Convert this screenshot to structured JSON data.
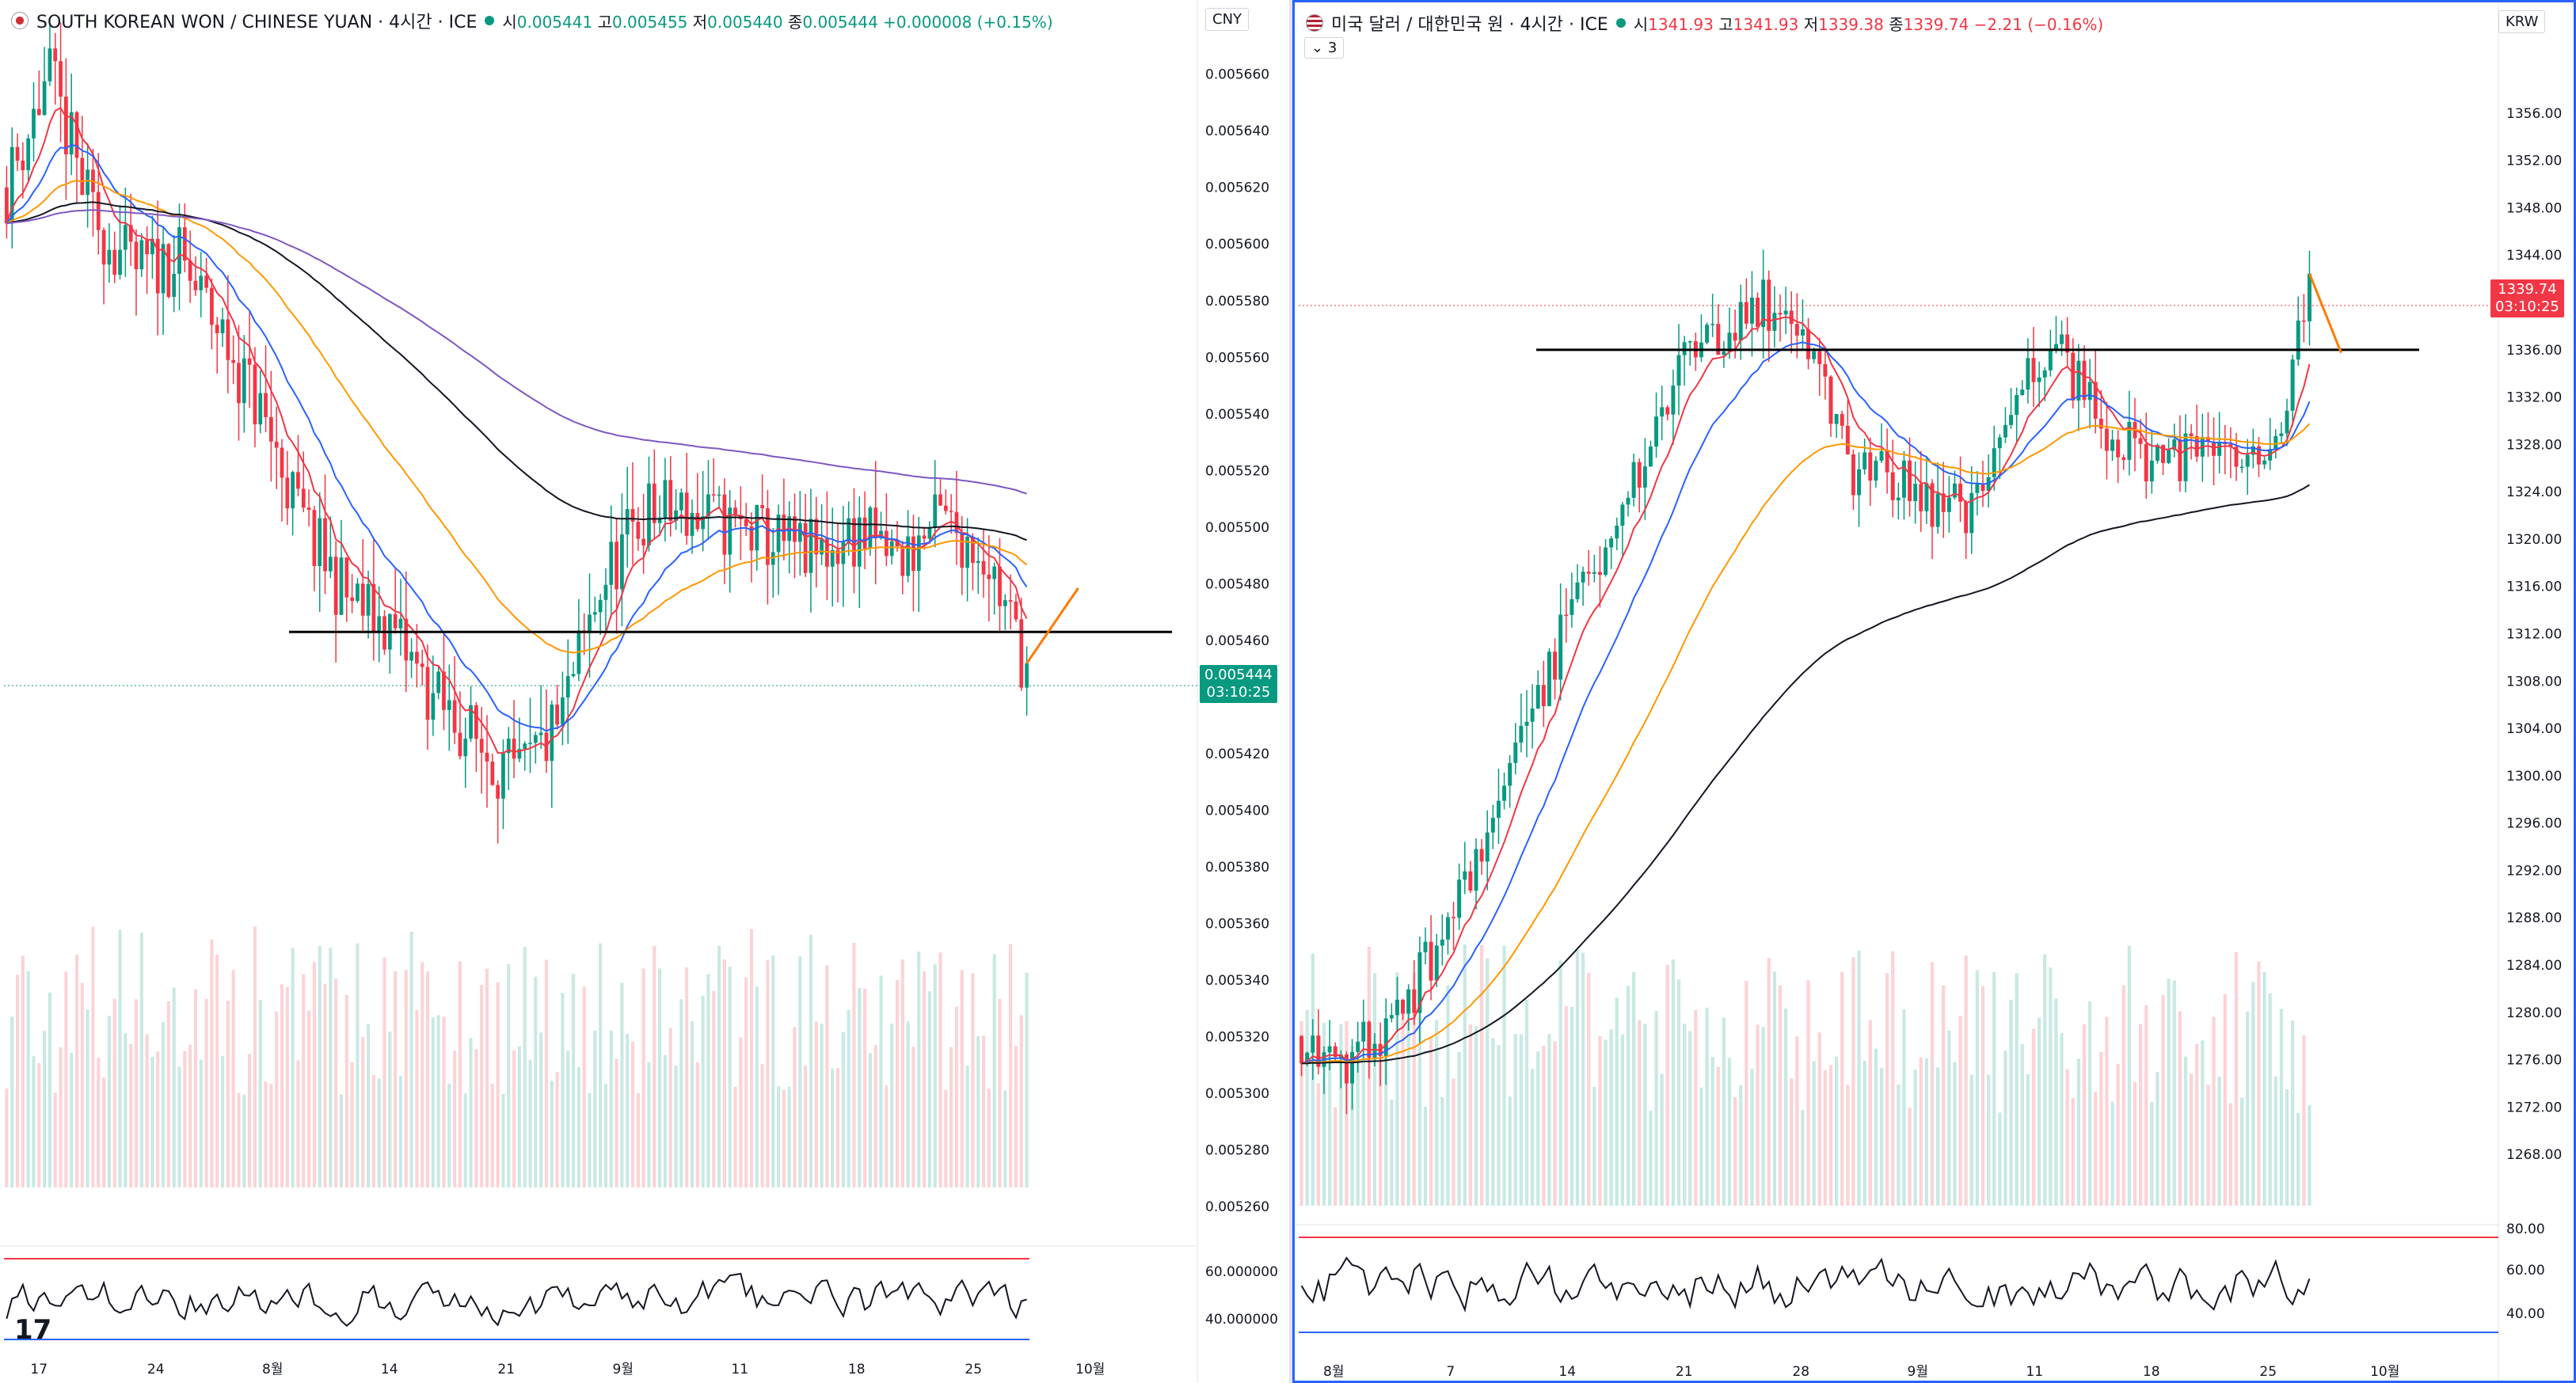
{
  "left": {
    "title": "SOUTH KOREAN WON / CHINESE YUAN · 4시간 · ICE",
    "ohlc": {
      "o_label": "시",
      "o": "0.005441",
      "h_label": "고",
      "h": "0.005455",
      "l_label": "저",
      "l": "0.005440",
      "c_label": "종",
      "c": "0.005444",
      "chg": "+0.000008 (+0.15%)"
    },
    "currency": "CNY",
    "price_tag": {
      "value": "0.005444",
      "time": "03:10:25",
      "color": "#089981"
    },
    "osc_labels": [
      "60.000000",
      "40.000000"
    ],
    "logo": "17"
  },
  "right": {
    "title": "미국 달러 / 대한민국 원 · 4시간 · ICE",
    "ohlc": {
      "o_label": "시",
      "o": "1341.93",
      "h_label": "고",
      "h": "1341.93",
      "l_label": "저",
      "l": "1339.38",
      "c_label": "종",
      "c": "1339.74",
      "chg": "−2.21 (−0.16%)"
    },
    "currency": "KRW",
    "indicator_count": "3",
    "price_tag": {
      "value": "1339.74",
      "time": "03:10:25",
      "color": "#f23645"
    },
    "osc_labels": [
      "80.00",
      "60.00",
      "40.00"
    ]
  },
  "chart_data": [
    {
      "type": "candlestick",
      "title": "SOUTH KOREAN WON / CHINESE YUAN · 4시간 · ICE",
      "ylim": [
        0.00525,
        0.005675
      ],
      "y_ticks": [
        "0.005660",
        "0.005640",
        "0.005620",
        "0.005600",
        "0.005580",
        "0.005560",
        "0.005540",
        "0.005520",
        "0.005500",
        "0.005480",
        "0.005460",
        "0.005440",
        "0.005420",
        "0.005400",
        "0.005380",
        "0.005360",
        "0.005340",
        "0.005320",
        "0.005300",
        "0.005280",
        "0.005260"
      ],
      "x_ticks": [
        "17",
        "24",
        "8월",
        "14",
        "21",
        "9월",
        "11",
        "18",
        "25",
        "10월"
      ],
      "horizontal_line": 0.005463,
      "last_close": 0.005444,
      "path_anchors": [
        [
          0,
          0.00562
        ],
        [
          1,
          0.00566
        ],
        [
          2,
          0.00561
        ],
        [
          3,
          0.00559
        ],
        [
          4,
          0.005595
        ],
        [
          5,
          0.00557
        ],
        [
          6,
          0.00554
        ],
        [
          7,
          0.0055
        ],
        [
          8,
          0.005475
        ],
        [
          9,
          0.005465
        ],
        [
          10,
          0.00544
        ],
        [
          11,
          0.005425
        ],
        [
          12,
          0.00541
        ],
        [
          13,
          0.00543
        ],
        [
          14,
          0.00548
        ],
        [
          15,
          0.005505
        ],
        [
          16,
          0.005505
        ],
        [
          17,
          0.0055
        ],
        [
          18,
          0.005495
        ],
        [
          19,
          0.00549
        ],
        [
          20,
          0.005498
        ],
        [
          21,
          0.005488
        ],
        [
          22,
          0.005502
        ],
        [
          23,
          0.005492
        ],
        [
          24,
          0.00545
        ]
      ]
    },
    {
      "type": "candlestick",
      "title": "미국 달러 / 대한민국 원 · 4시간 · ICE",
      "ylim": [
        1265,
        1358
      ],
      "y_ticks": [
        "1356.00",
        "1352.00",
        "1348.00",
        "1344.00",
        "1340.00",
        "1336.00",
        "1332.00",
        "1328.00",
        "1324.00",
        "1320.00",
        "1316.00",
        "1312.00",
        "1308.00",
        "1304.00",
        "1300.00",
        "1296.00",
        "1292.00",
        "1288.00",
        "1284.00",
        "1280.00",
        "1276.00",
        "1272.00",
        "1268.00"
      ],
      "x_ticks": [
        "8월",
        "7",
        "14",
        "21",
        "28",
        "9월",
        "11",
        "18",
        "25",
        "10월"
      ],
      "horizontal_line": 1336.0,
      "last_close": 1339.74,
      "path_anchors": [
        [
          0,
          1278
        ],
        [
          1,
          1276
        ],
        [
          2,
          1278
        ],
        [
          3,
          1284
        ],
        [
          4,
          1292
        ],
        [
          5,
          1300
        ],
        [
          6,
          1310
        ],
        [
          7,
          1318
        ],
        [
          8,
          1325
        ],
        [
          9,
          1334
        ],
        [
          10,
          1338
        ],
        [
          11,
          1340
        ],
        [
          12,
          1338
        ],
        [
          13,
          1326
        ],
        [
          14,
          1325
        ],
        [
          15,
          1323
        ],
        [
          16,
          1322
        ],
        [
          17,
          1334
        ],
        [
          18,
          1336
        ],
        [
          19,
          1330
        ],
        [
          20,
          1327
        ],
        [
          21,
          1327
        ],
        [
          22,
          1326
        ],
        [
          23,
          1326
        ],
        [
          24,
          1341
        ]
      ]
    }
  ]
}
